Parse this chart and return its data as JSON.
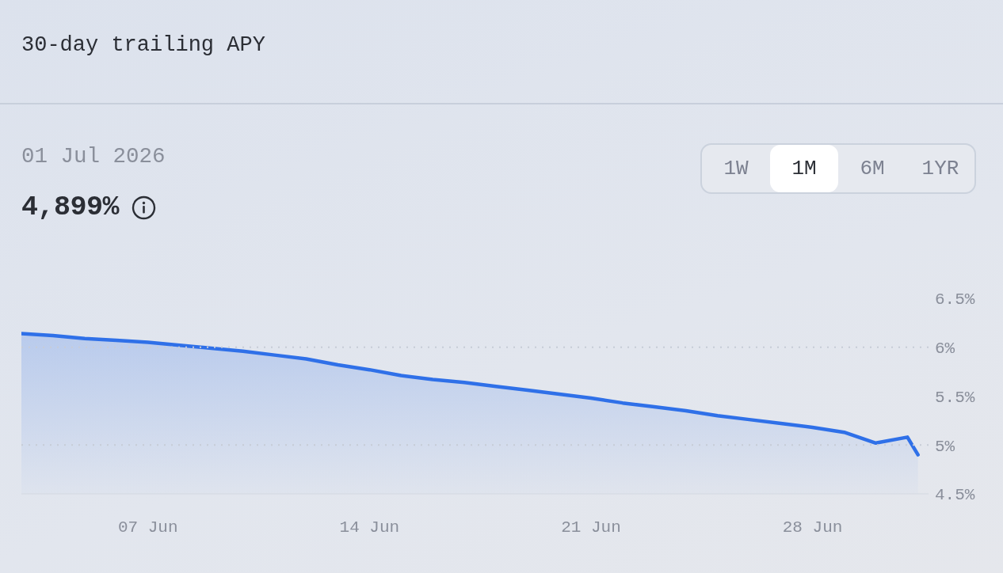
{
  "chart_data": {
    "type": "area",
    "title": "30-day trailing APY",
    "subtitle": "01 Jul 2026",
    "annotations": [
      "4,899%",
      "1W",
      "1M",
      "6M",
      "1YR"
    ],
    "x": [
      "2026-06-03",
      "2026-06-04",
      "2026-06-05",
      "2026-06-06",
      "2026-06-07",
      "2026-06-08",
      "2026-06-09",
      "2026-06-10",
      "2026-06-11",
      "2026-06-12",
      "2026-06-13",
      "2026-06-14",
      "2026-06-15",
      "2026-06-16",
      "2026-06-17",
      "2026-06-18",
      "2026-06-19",
      "2026-06-20",
      "2026-06-21",
      "2026-06-22",
      "2026-06-23",
      "2026-06-24",
      "2026-06-25",
      "2026-06-26",
      "2026-06-27",
      "2026-06-28",
      "2026-06-29",
      "2026-06-30",
      "2026-07-01",
      "2026-07-01T08:00"
    ],
    "values": [
      6.14,
      6.12,
      6.09,
      6.07,
      6.05,
      6.02,
      5.99,
      5.96,
      5.92,
      5.88,
      5.82,
      5.77,
      5.71,
      5.67,
      5.64,
      5.6,
      5.56,
      5.52,
      5.48,
      5.43,
      5.39,
      5.35,
      5.3,
      5.26,
      5.22,
      5.18,
      5.13,
      5.02,
      5.08,
      4.9
    ],
    "color": "#2f70e8",
    "xlim": [
      "2026-06-03",
      "2026-07-01T16:00"
    ],
    "xticks": [
      {
        "value": "2026-06-07",
        "label": "07 Jun"
      },
      {
        "value": "2026-06-14",
        "label": "14 Jun"
      },
      {
        "value": "2026-06-21",
        "label": "21 Jun"
      },
      {
        "value": "2026-06-28",
        "label": "28 Jun"
      }
    ],
    "ylim": [
      4.5,
      6.5
    ],
    "yticks": [
      {
        "value": 4.5,
        "label": "4.5%"
      },
      {
        "value": 5,
        "label": "5%"
      },
      {
        "value": 5.5,
        "label": "5.5%"
      },
      {
        "value": 6,
        "label": "6%"
      },
      {
        "value": 6.5,
        "label": "6.5%"
      }
    ],
    "ref_lines": [
      {
        "axis": "y",
        "value": 6,
        "line_style": "dotted",
        "color": "#c6ccd6"
      },
      {
        "axis": "y",
        "value": 5,
        "line_style": "dotted",
        "color": "#c6ccd6"
      }
    ]
  }
}
